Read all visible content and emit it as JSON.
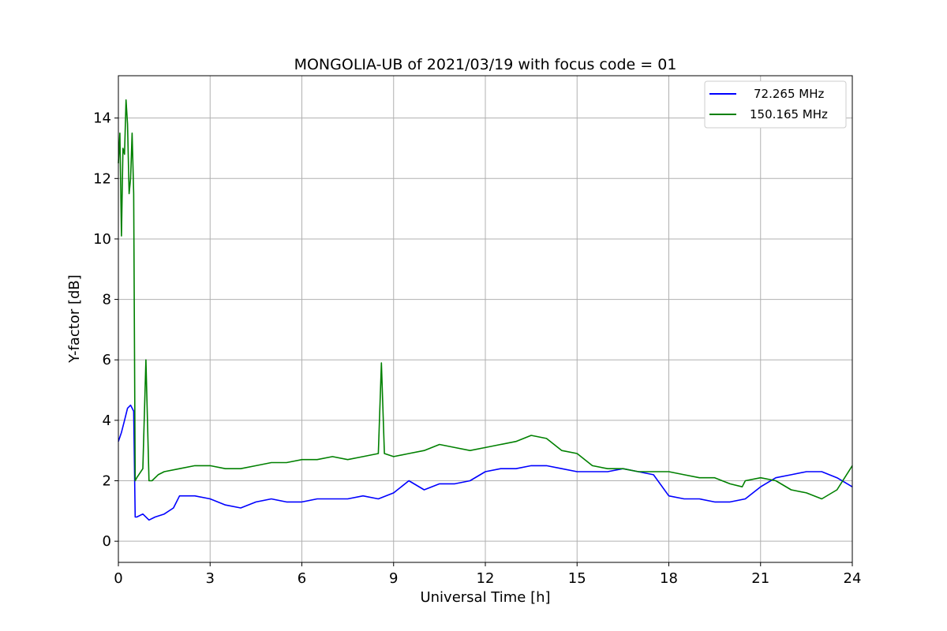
{
  "chart_data": {
    "type": "line",
    "title": "MONGOLIA-UB of 2021/03/19 with focus code = 01",
    "xlabel": "Universal Time [h]",
    "ylabel": "Y-factor [dB]",
    "xlim": [
      0,
      24
    ],
    "ylim": [
      -0.7,
      15.4
    ],
    "xticks": [
      0,
      3,
      6,
      9,
      12,
      15,
      18,
      21,
      24
    ],
    "yticks": [
      0,
      2,
      4,
      6,
      8,
      10,
      12,
      14
    ],
    "grid": true,
    "legend_position": "top-right",
    "series": [
      {
        "name": "72.265 MHz",
        "color": "#0000ff",
        "x": [
          0.0,
          0.1,
          0.2,
          0.3,
          0.4,
          0.5,
          0.55,
          0.6,
          0.8,
          1.0,
          1.2,
          1.5,
          1.8,
          2.0,
          2.5,
          3.0,
          3.5,
          4.0,
          4.5,
          5.0,
          5.5,
          6.0,
          6.5,
          7.0,
          7.5,
          8.0,
          8.5,
          9.0,
          9.5,
          10.0,
          10.5,
          11.0,
          11.5,
          12.0,
          12.5,
          13.0,
          13.5,
          14.0,
          14.5,
          15.0,
          15.5,
          16.0,
          16.5,
          17.0,
          17.5,
          18.0,
          18.5,
          19.0,
          19.5,
          20.0,
          20.5,
          21.0,
          21.5,
          22.0,
          22.5,
          23.0,
          23.5,
          24.0
        ],
        "y": [
          3.3,
          3.6,
          4.0,
          4.4,
          4.5,
          4.3,
          0.8,
          0.8,
          0.9,
          0.7,
          0.8,
          0.9,
          1.1,
          1.5,
          1.5,
          1.4,
          1.2,
          1.1,
          1.3,
          1.4,
          1.3,
          1.3,
          1.4,
          1.4,
          1.4,
          1.5,
          1.4,
          1.6,
          2.0,
          1.7,
          1.9,
          1.9,
          2.0,
          2.3,
          2.4,
          2.4,
          2.5,
          2.5,
          2.4,
          2.3,
          2.3,
          2.3,
          2.4,
          2.3,
          2.2,
          1.5,
          1.4,
          1.4,
          1.3,
          1.3,
          1.4,
          1.8,
          2.1,
          2.2,
          2.3,
          2.3,
          2.1,
          1.8
        ]
      },
      {
        "name": "150.165 MHz",
        "color": "#008000",
        "x": [
          0.0,
          0.05,
          0.1,
          0.15,
          0.2,
          0.25,
          0.3,
          0.35,
          0.4,
          0.45,
          0.5,
          0.55,
          0.6,
          0.8,
          0.9,
          1.0,
          1.1,
          1.3,
          1.5,
          2.0,
          2.5,
          3.0,
          3.5,
          4.0,
          4.5,
          5.0,
          5.5,
          6.0,
          6.5,
          7.0,
          7.5,
          8.0,
          8.5,
          8.6,
          8.7,
          9.0,
          9.5,
          10.0,
          10.5,
          11.0,
          11.5,
          12.0,
          12.5,
          13.0,
          13.5,
          14.0,
          14.5,
          15.0,
          15.5,
          16.0,
          16.5,
          17.0,
          17.5,
          18.0,
          18.5,
          19.0,
          19.5,
          20.0,
          20.4,
          20.5,
          21.0,
          21.5,
          22.0,
          22.5,
          23.0,
          23.5,
          24.0
        ],
        "y": [
          12.5,
          13.5,
          10.1,
          13.0,
          12.8,
          14.6,
          13.8,
          11.5,
          12.0,
          13.5,
          11.5,
          2.0,
          2.1,
          2.4,
          6.0,
          2.0,
          2.0,
          2.2,
          2.3,
          2.4,
          2.5,
          2.5,
          2.4,
          2.4,
          2.5,
          2.6,
          2.6,
          2.7,
          2.7,
          2.8,
          2.7,
          2.8,
          2.9,
          5.9,
          2.9,
          2.8,
          2.9,
          3.0,
          3.2,
          3.1,
          3.0,
          3.1,
          3.2,
          3.3,
          3.5,
          3.4,
          3.0,
          2.9,
          2.5,
          2.4,
          2.4,
          2.3,
          2.3,
          2.3,
          2.2,
          2.1,
          2.1,
          1.9,
          1.8,
          2.0,
          2.1,
          2.0,
          1.7,
          1.6,
          1.4,
          1.7,
          2.5
        ]
      }
    ]
  }
}
